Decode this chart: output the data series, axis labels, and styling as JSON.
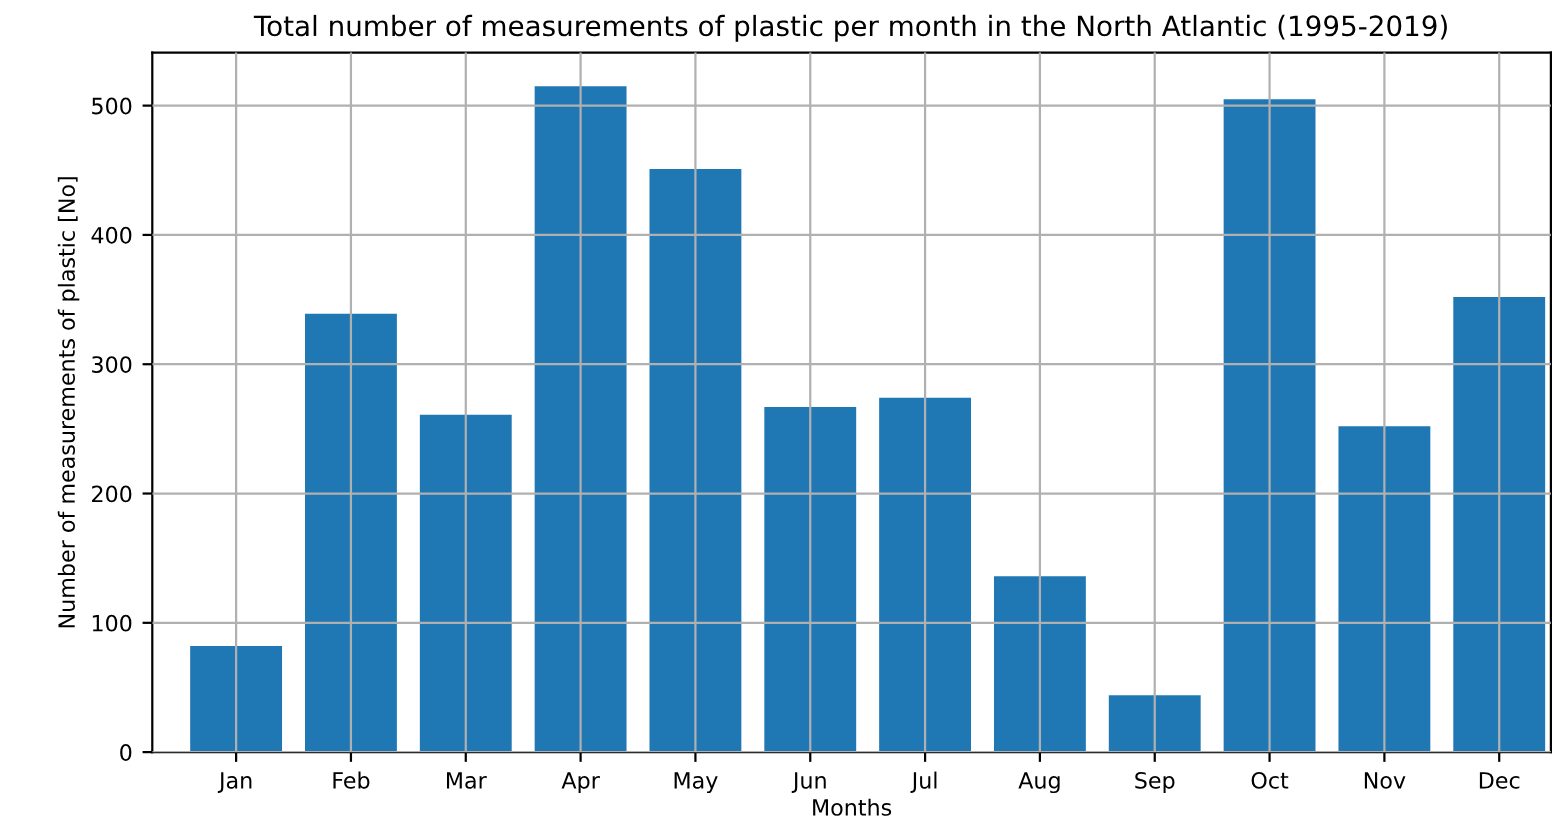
{
  "chart_data": {
    "type": "bar",
    "title": "Total number of measurements of plastic per month in the North Atlantic (1995-2019)",
    "xlabel": "Months",
    "ylabel": "Number of measurements of plastic [No]",
    "categories": [
      "Jan",
      "Feb",
      "Mar",
      "Apr",
      "May",
      "Jun",
      "Jul",
      "Aug",
      "Sep",
      "Oct",
      "Nov",
      "Dec"
    ],
    "values": [
      82,
      339,
      261,
      515,
      451,
      267,
      274,
      136,
      44,
      505,
      252,
      352
    ],
    "color": "#1f77b4",
    "ylim": [
      0,
      541
    ],
    "yticks": [
      0,
      100,
      200,
      300,
      400,
      500
    ],
    "grid": true
  }
}
